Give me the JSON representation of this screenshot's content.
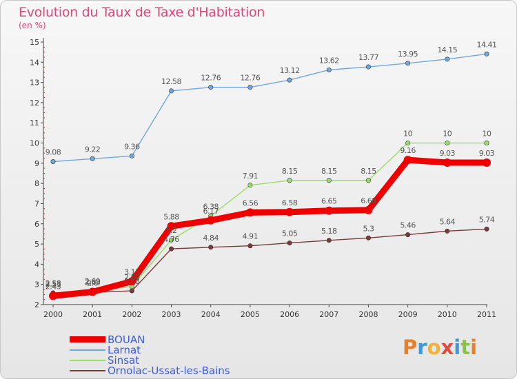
{
  "title": "Evolution du Taux de Taxe d'Habitation",
  "unit": "(en %)",
  "brand": "Proxiti",
  "brand_colors": [
    "#e8802a",
    "#3d9ad6",
    "#f2b233",
    "#e04d3c",
    "#3d9ad6",
    "#8bc34a",
    "#e8802a"
  ],
  "chart_data": {
    "type": "line",
    "title": "Evolution du Taux de Taxe d'Habitation",
    "ylabel": "(en %)",
    "xlabel": "",
    "ylim": [
      2,
      15
    ],
    "yticks": [
      2,
      3,
      4,
      5,
      6,
      7,
      8,
      9,
      10,
      11,
      12,
      13,
      14,
      15
    ],
    "categories": [
      "2000",
      "2001",
      "2002",
      "2003",
      "2004",
      "2005",
      "2006",
      "2007",
      "2008",
      "2009",
      "2010",
      "2011"
    ],
    "series": [
      {
        "name": "BOUAN",
        "color": "#ee0000",
        "values": [
          2.43,
          2.63,
          3.15,
          5.88,
          6.17,
          6.56,
          6.58,
          6.65,
          6.68,
          9.16,
          9.03,
          9.03
        ],
        "labels": [
          "2.43",
          "2.63",
          "3.15",
          "5.88",
          "6.17",
          "6.56",
          "6.58",
          "6.65",
          "6.68",
          "9.16",
          "9.03",
          "9.03"
        ]
      },
      {
        "name": "Larnat",
        "color": "#6fa8dc",
        "values": [
          9.08,
          9.22,
          9.36,
          12.58,
          12.76,
          12.76,
          13.12,
          13.62,
          13.77,
          13.95,
          14.15,
          14.41
        ],
        "labels": [
          "9.08",
          "9.22",
          "9.36",
          "12.58",
          "12.76",
          "12.76",
          "13.12",
          "13.62",
          "13.77",
          "13.95",
          "14.15",
          "14.41"
        ]
      },
      {
        "name": "Sinsat",
        "color": "#99dd66",
        "values": [
          2.53,
          2.69,
          2.89,
          5.2,
          6.38,
          7.91,
          8.15,
          8.15,
          8.15,
          10,
          10,
          10
        ],
        "labels": [
          "2.53",
          "2.69",
          "2.89",
          "5.2",
          "6.38",
          "7.91",
          "8.15",
          "8.15",
          "8.15",
          "10",
          "10",
          "10"
        ]
      },
      {
        "name": "Ornolac-Ussat-les-Bains",
        "color": "#7a3a3a",
        "values": [
          2.58,
          2.6,
          2.68,
          4.76,
          4.84,
          4.91,
          5.05,
          5.18,
          5.3,
          5.46,
          5.64,
          5.74
        ],
        "labels": [
          "2.58",
          "2.6",
          "2.68",
          "4.76",
          "4.84",
          "4.91",
          "5.05",
          "5.18",
          "5.3",
          "5.46",
          "5.64",
          "5.74"
        ]
      }
    ],
    "legend_position": "bottom-left",
    "grid": false
  }
}
